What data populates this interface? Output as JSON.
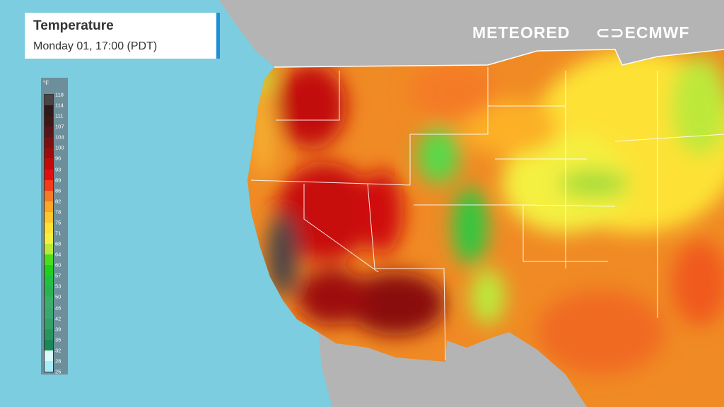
{
  "header": {
    "title": "Temperature",
    "subtitle": "Monday 01, 17:00 (PDT)"
  },
  "legend": {
    "unit": "°F",
    "labels": [
      "118",
      "114",
      "111",
      "107",
      "104",
      "100",
      "96",
      "93",
      "89",
      "86",
      "82",
      "78",
      "75",
      "71",
      "68",
      "64",
      "60",
      "57",
      "53",
      "50",
      "46",
      "42",
      "39",
      "35",
      "32",
      "28",
      "25"
    ],
    "colors": [
      "#4a4446",
      "#2e1a1a",
      "#3d1818",
      "#561519",
      "#7a1010",
      "#9c0c0c",
      "#c20a0a",
      "#e01010",
      "#f23c1a",
      "#f57a25",
      "#fca526",
      "#fdc62a",
      "#fde234",
      "#f4f040",
      "#bde83a",
      "#4ade1e",
      "#20d020",
      "#22c040",
      "#2ab450",
      "#3aae6a",
      "#3aa870",
      "#33a068",
      "#2a9460",
      "#1a8858",
      "#d8fafc",
      "#a8eef8"
    ]
  },
  "logos": {
    "meteored": "METEORED",
    "ecmwf": "ECMWF"
  },
  "map_colors": {
    "ocean": "#7ccde0",
    "land_outside": "#b4b4b4",
    "base": "#f08a24",
    "border": "#ffffff"
  }
}
